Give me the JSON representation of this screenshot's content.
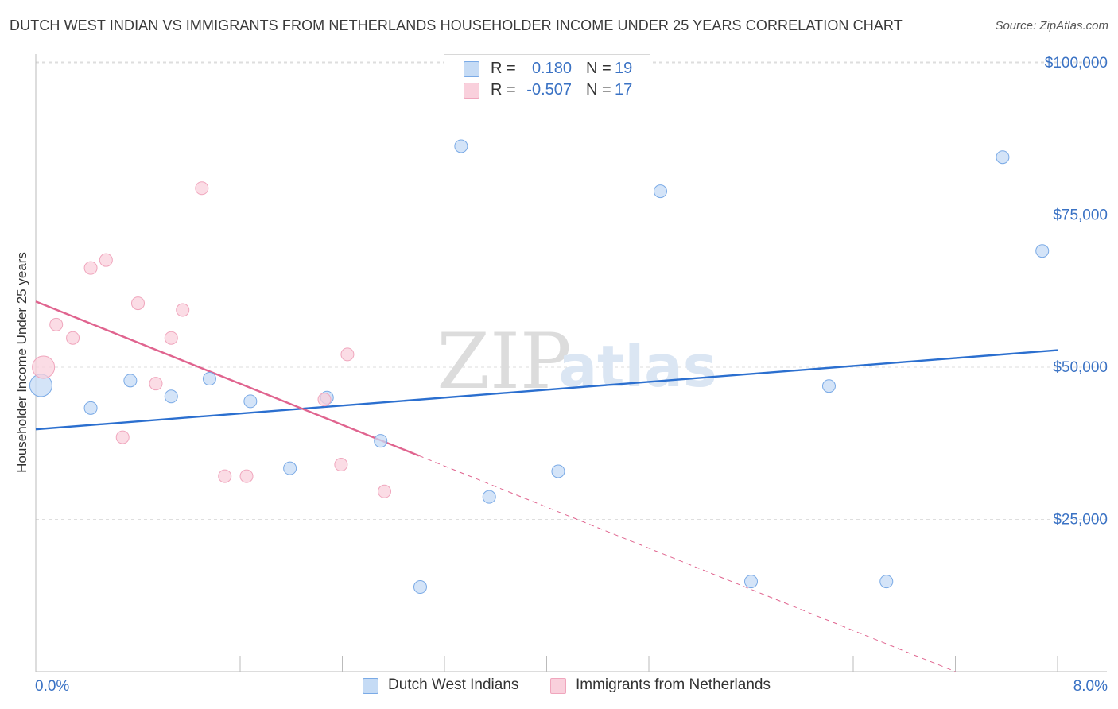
{
  "header": {
    "title": "DUTCH WEST INDIAN VS IMMIGRANTS FROM NETHERLANDS HOUSEHOLDER INCOME UNDER 25 YEARS CORRELATION CHART",
    "source": "Source: ZipAtlas.com"
  },
  "watermark": {
    "zip": "ZIP",
    "atlas": "atlas"
  },
  "legend": {
    "r_label": "R =",
    "n_label": "N =",
    "series1": {
      "r": "0.180",
      "n": "19"
    },
    "series2": {
      "r": "-0.507",
      "n": "17"
    }
  },
  "chart_data": {
    "type": "scatter",
    "title": "DUTCH WEST INDIAN VS IMMIGRANTS FROM NETHERLANDS HOUSEHOLDER INCOME UNDER 25 YEARS CORRELATION CHART",
    "xlabel": "",
    "ylabel": "Householder Income Under 25 years",
    "xlim": [
      0,
      8
    ],
    "ylim": [
      0,
      105000
    ],
    "x_tick_labels": [
      "0.0%",
      "8.0%"
    ],
    "y_ticks": [
      {
        "value": 25000,
        "label": "$25,000"
      },
      {
        "value": 50000,
        "label": "$50,000"
      },
      {
        "value": 75000,
        "label": "$75,000"
      },
      {
        "value": 100000,
        "label": "$100,000"
      }
    ],
    "grid": true,
    "legend_position": "top-center",
    "series": [
      {
        "name": "Dutch West Indians",
        "color": "#7aaae6",
        "fill": "#c5dbf5",
        "trend_color": "#2b6fcf",
        "r": 0.18,
        "n": 19,
        "trend": {
          "x": [
            0,
            8
          ],
          "y": [
            39800,
            52800
          ],
          "dashed_from": null
        },
        "points": [
          {
            "x": 0.04,
            "y": 47000,
            "size": "large"
          },
          {
            "x": 0.43,
            "y": 43300
          },
          {
            "x": 0.74,
            "y": 47800
          },
          {
            "x": 1.06,
            "y": 45200
          },
          {
            "x": 1.36,
            "y": 48100
          },
          {
            "x": 1.68,
            "y": 44400
          },
          {
            "x": 1.99,
            "y": 33400
          },
          {
            "x": 2.28,
            "y": 45000
          },
          {
            "x": 2.7,
            "y": 37900
          },
          {
            "x": 3.01,
            "y": 13900
          },
          {
            "x": 3.33,
            "y": 86300
          },
          {
            "x": 3.55,
            "y": 28700
          },
          {
            "x": 4.09,
            "y": 32900
          },
          {
            "x": 4.89,
            "y": 78900
          },
          {
            "x": 5.6,
            "y": 14800
          },
          {
            "x": 6.21,
            "y": 46900
          },
          {
            "x": 6.66,
            "y": 14800
          },
          {
            "x": 7.57,
            "y": 84500
          },
          {
            "x": 7.88,
            "y": 69100
          }
        ]
      },
      {
        "name": "Immigrants from Netherlands",
        "color": "#f0a6bd",
        "fill": "#f9d0dc",
        "trend_color": "#e0648f",
        "r": -0.507,
        "n": 17,
        "trend": {
          "x": [
            0,
            7.2
          ],
          "y": [
            60800,
            0
          ],
          "dashed_from": 3.0
        },
        "points": [
          {
            "x": 0.06,
            "y": 50000,
            "size": "large"
          },
          {
            "x": 0.16,
            "y": 57000
          },
          {
            "x": 0.29,
            "y": 54800
          },
          {
            "x": 0.43,
            "y": 66300
          },
          {
            "x": 0.55,
            "y": 67600
          },
          {
            "x": 0.68,
            "y": 38500
          },
          {
            "x": 0.8,
            "y": 60500
          },
          {
            "x": 0.94,
            "y": 47300
          },
          {
            "x": 1.06,
            "y": 54800
          },
          {
            "x": 1.15,
            "y": 59400
          },
          {
            "x": 1.3,
            "y": 79400
          },
          {
            "x": 1.48,
            "y": 32100
          },
          {
            "x": 1.65,
            "y": 32100
          },
          {
            "x": 2.26,
            "y": 44700
          },
          {
            "x": 2.39,
            "y": 34000
          },
          {
            "x": 2.44,
            "y": 52100
          },
          {
            "x": 2.73,
            "y": 29600
          }
        ]
      }
    ]
  }
}
